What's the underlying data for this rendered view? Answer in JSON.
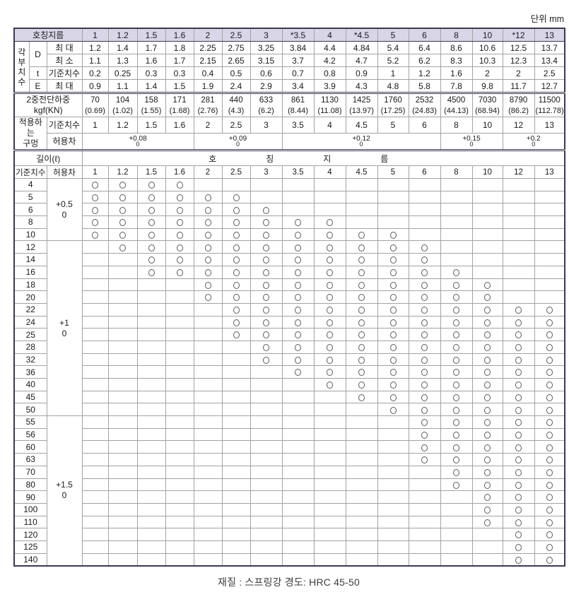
{
  "unit_label": "단위 mm",
  "caption": "재질 : 스프링강  경도: HRC 45-50",
  "header": {
    "nominal_diameter_label": "호칭지름",
    "diameters": [
      "1",
      "1.2",
      "1.5",
      "1.6",
      "2",
      "2.5",
      "3",
      "*3.5",
      "4",
      "*4.5",
      "5",
      "6",
      "8",
      "10",
      "*12",
      "13"
    ]
  },
  "dimensions": {
    "group_label": "각부치수",
    "rows": [
      {
        "symbol": "D",
        "kind": "최 대",
        "values": [
          "1.2",
          "1.4",
          "1.7",
          "1.8",
          "2.25",
          "2.75",
          "3.25",
          "3.84",
          "4.4",
          "4.84",
          "5.4",
          "6.4",
          "8.6",
          "10.6",
          "12.5",
          "13.7"
        ]
      },
      {
        "symbol": "D",
        "kind": "최 소",
        "values": [
          "1.1",
          "1.3",
          "1.6",
          "1.7",
          "2.15",
          "2.65",
          "3.15",
          "3.7",
          "4.2",
          "4.7",
          "5.2",
          "6.2",
          "8.3",
          "10.3",
          "12.3",
          "13.4"
        ]
      },
      {
        "symbol": "t",
        "kind": "기준치수",
        "values": [
          "0.2",
          "0.25",
          "0.3",
          "0.3",
          "0.4",
          "0.5",
          "0.6",
          "0.7",
          "0.8",
          "0.9",
          "1",
          "1.2",
          "1.6",
          "2",
          "2",
          "2.5"
        ]
      },
      {
        "symbol": "E",
        "kind": "최 대",
        "values": [
          "0.9",
          "1.1",
          "1.4",
          "1.5",
          "1.9",
          "2.4",
          "2.9",
          "3.4",
          "3.9",
          "4.3",
          "4.8",
          "5.8",
          "7.8",
          "9.8",
          "11.7",
          "12.7"
        ]
      }
    ]
  },
  "shear_load": {
    "label_line1": "2중전단하중",
    "label_line2": "kgf(KN)",
    "kgf": [
      "70",
      "104",
      "158",
      "171",
      "281",
      "440",
      "633",
      "861",
      "1130",
      "1425",
      "1760",
      "2532",
      "4500",
      "7030",
      "8790",
      "11500"
    ],
    "kn": [
      "(0.69)",
      "(1.02)",
      "(1.55)",
      "(1.68)",
      "(2.76)",
      "(4.3)",
      "(6.2)",
      "(8.44)",
      "(11.08)",
      "(13.97)",
      "(17.25)",
      "(24.83)",
      "(44.13)",
      "(68.94)",
      "(86.2)",
      "(112.78)"
    ]
  },
  "applicable_hole": {
    "label_line1": "적용하는",
    "label_line2": "구멍",
    "basic_label": "기준치수",
    "basic": [
      "1",
      "1.2",
      "1.5",
      "1.6",
      "2",
      "2.5",
      "3",
      "3.5",
      "4",
      "4.5",
      "5",
      "6",
      "8",
      "10",
      "12",
      "13"
    ],
    "tolerance_label": "허용차",
    "tolerances": [
      {
        "from": "1",
        "to": "1.6",
        "upper": "+0.08",
        "lower": "0"
      },
      {
        "from": "2",
        "to": "3",
        "upper": "+0.09",
        "lower": "0"
      },
      {
        "from": "3.5",
        "to": "6",
        "upper": "+0.12",
        "lower": "0"
      },
      {
        "from": "8",
        "to": "10",
        "upper": "+0.15",
        "lower": "0"
      },
      {
        "from": "12",
        "to": "13",
        "upper": "+0.2",
        "lower": "0"
      }
    ]
  },
  "length_section": {
    "length_label": "길이(ℓ)",
    "spread_label": "호칭지름",
    "basic_label": "기준치수",
    "tolerance_label": "허용차",
    "columns": [
      "1",
      "1.2",
      "1.5",
      "1.6",
      "2",
      "2.5",
      "3",
      "3.5",
      "4",
      "4.5",
      "5",
      "6",
      "8",
      "10",
      "12",
      "13"
    ],
    "tolerance_groups": [
      {
        "upper": "+0.5",
        "lower": "0",
        "from_length": "4",
        "to_length": "10"
      },
      {
        "upper": "+1",
        "lower": "0",
        "from_length": "12",
        "to_length": "50"
      },
      {
        "upper": "+1.5",
        "lower": "0",
        "from_length": "55",
        "to_length": "140"
      }
    ],
    "availability": [
      {
        "length": "4",
        "from": "1",
        "to": "1.6"
      },
      {
        "length": "5",
        "from": "1",
        "to": "2.5"
      },
      {
        "length": "6",
        "from": "1",
        "to": "3"
      },
      {
        "length": "8",
        "from": "1",
        "to": "4"
      },
      {
        "length": "10",
        "from": "1",
        "to": "5"
      },
      {
        "length": "12",
        "from": "1.2",
        "to": "6"
      },
      {
        "length": "14",
        "from": "1.5",
        "to": "6"
      },
      {
        "length": "16",
        "from": "1.5",
        "to": "8"
      },
      {
        "length": "18",
        "from": "2",
        "to": "10"
      },
      {
        "length": "20",
        "from": "2",
        "to": "10"
      },
      {
        "length": "22",
        "from": "2.5",
        "to": "13"
      },
      {
        "length": "24",
        "from": "2.5",
        "to": "13"
      },
      {
        "length": "25",
        "from": "2.5",
        "to": "13"
      },
      {
        "length": "28",
        "from": "3",
        "to": "13"
      },
      {
        "length": "32",
        "from": "3",
        "to": "13"
      },
      {
        "length": "36",
        "from": "3.5",
        "to": "13"
      },
      {
        "length": "40",
        "from": "4",
        "to": "13"
      },
      {
        "length": "45",
        "from": "4.5",
        "to": "13"
      },
      {
        "length": "50",
        "from": "5",
        "to": "13"
      },
      {
        "length": "55",
        "from": "6",
        "to": "13"
      },
      {
        "length": "56",
        "from": "6",
        "to": "13"
      },
      {
        "length": "60",
        "from": "6",
        "to": "13"
      },
      {
        "length": "63",
        "from": "6",
        "to": "13"
      },
      {
        "length": "70",
        "from": "8",
        "to": "13"
      },
      {
        "length": "80",
        "from": "8",
        "to": "13"
      },
      {
        "length": "90",
        "from": "10",
        "to": "13"
      },
      {
        "length": "100",
        "from": "10",
        "to": "13"
      },
      {
        "length": "110",
        "from": "10",
        "to": "13"
      },
      {
        "length": "120",
        "from": "12",
        "to": "13"
      },
      {
        "length": "125",
        "from": "12",
        "to": "13"
      },
      {
        "length": "140",
        "from": "12",
        "to": "13"
      }
    ]
  }
}
